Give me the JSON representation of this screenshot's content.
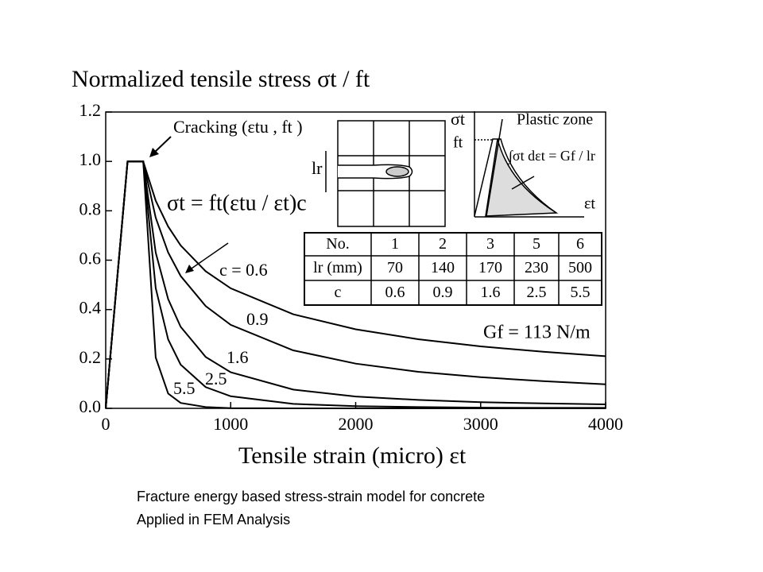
{
  "chart_data": {
    "type": "line",
    "title": "Normalized tensile stress  σt / ft",
    "xlabel": "Tensile strain (micro)  εt",
    "x": [
      0,
      175,
      300,
      400,
      500,
      600,
      800,
      1000,
      1500,
      2000,
      2500,
      3000,
      3500,
      4000
    ],
    "series": [
      {
        "name": "c = 0.6",
        "color": "#000000",
        "values": [
          0,
          1.0,
          1.0,
          0.841,
          0.736,
          0.66,
          0.555,
          0.486,
          0.381,
          0.32,
          0.28,
          0.251,
          0.229,
          0.211
        ]
      },
      {
        "name": "0.9",
        "color": "#000000",
        "values": [
          0,
          1.0,
          1.0,
          0.772,
          0.631,
          0.536,
          0.414,
          0.338,
          0.235,
          0.181,
          0.148,
          0.126,
          0.11,
          0.097
        ]
      },
      {
        "name": "1.6",
        "color": "#000000",
        "values": [
          0,
          1.0,
          1.0,
          0.631,
          0.442,
          0.33,
          0.208,
          0.146,
          0.076,
          0.048,
          0.034,
          0.025,
          0.02,
          0.016
        ]
      },
      {
        "name": "2.5",
        "color": "#000000",
        "values": [
          0,
          1.0,
          1.0,
          0.487,
          0.279,
          0.177,
          0.086,
          0.049,
          0.018,
          0.009,
          0.005,
          0.003,
          0.002,
          0.002
        ]
      },
      {
        "name": "5.5",
        "color": "#000000",
        "values": [
          0,
          1.0,
          1.0,
          0.206,
          0.06,
          0.022,
          0.005,
          0.001,
          0,
          0,
          0,
          0,
          0,
          0
        ]
      }
    ],
    "xlim": [
      0,
      4000
    ],
    "xticks": [
      0,
      1000,
      2000,
      3000,
      4000
    ],
    "ylim": [
      0,
      1.2
    ],
    "yticks": [
      {
        "value": 0,
        "label": "0.0"
      },
      0.2,
      0.4,
      0.6,
      0.8,
      {
        "value": 1,
        "label": "1.0"
      },
      1.2
    ],
    "annotations": {
      "cracking": "Cracking (εtu , ft )",
      "formula": "σt = ft(εtu / εt)c",
      "gf": "Gf = 113 N/m"
    },
    "inset": {
      "lr": "lr",
      "sigma": "σt",
      "ft": "ft",
      "plastic_zone": "Plastic zone",
      "integral": "∫σt dεt = Gf / lr",
      "eps": "εt"
    },
    "table": [
      [
        "No.",
        "1",
        "2",
        "3",
        "5",
        "6"
      ],
      [
        "lr (mm)",
        "70",
        "140",
        "170",
        "230",
        "500"
      ],
      [
        "c",
        "0.6",
        "0.9",
        "1.6",
        "2.5",
        "5.5"
      ]
    ]
  },
  "caption": [
    "Fracture energy based stress-strain model for concrete",
    "Applied in FEM Analysis"
  ]
}
